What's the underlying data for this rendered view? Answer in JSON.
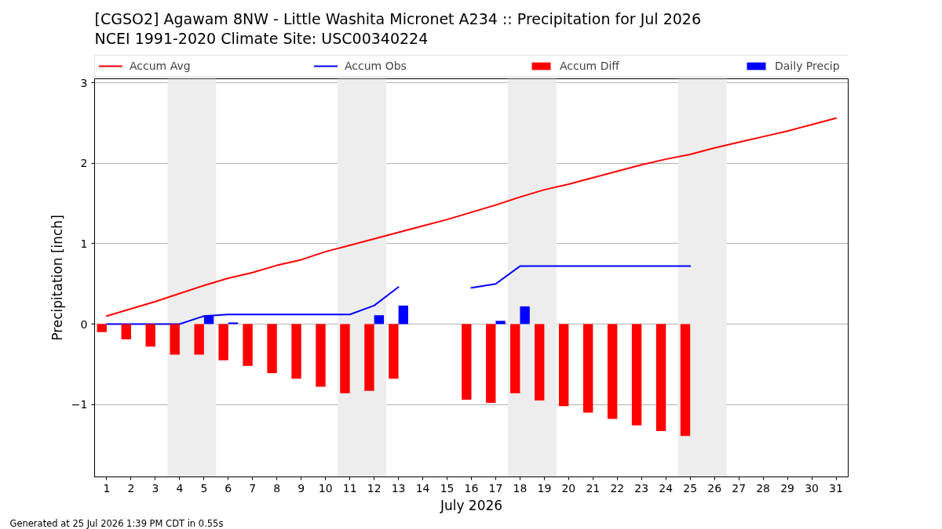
{
  "chart_data": {
    "type": "bar",
    "title": "[CGSO2] Agawam 8NW - Little Washita Micronet A234 :: Precipitation for Jul 2026",
    "subtitle": "NCEI 1991-2020 Climate Site: USC00340224",
    "xlabel": "July 2026",
    "ylabel": "Precipitation [inch]",
    "x": [
      1,
      2,
      3,
      4,
      5,
      6,
      7,
      8,
      9,
      10,
      11,
      12,
      13,
      14,
      15,
      16,
      17,
      18,
      19,
      20,
      21,
      22,
      23,
      24,
      25,
      26,
      27,
      28,
      29,
      30,
      31
    ],
    "xlim": [
      0.5,
      31.5
    ],
    "xticks": [
      1,
      2,
      3,
      4,
      5,
      6,
      7,
      8,
      9,
      10,
      11,
      12,
      13,
      14,
      15,
      16,
      17,
      18,
      19,
      20,
      21,
      22,
      23,
      24,
      25,
      26,
      27,
      28,
      29,
      30,
      31
    ],
    "ylim": [
      -1.9,
      3.05
    ],
    "yticks": [
      {
        "value": -1,
        "label": "−1"
      },
      0,
      1,
      2,
      3
    ],
    "grid": "y",
    "legend": "top",
    "bands": [
      {
        "axis": "x",
        "from": 3.5,
        "to": 5.5,
        "color": "#ededed"
      },
      {
        "axis": "x",
        "from": 10.5,
        "to": 12.5,
        "color": "#ededed"
      },
      {
        "axis": "x",
        "from": 17.5,
        "to": 19.5,
        "color": "#ededed"
      },
      {
        "axis": "x",
        "from": 24.5,
        "to": 26.5,
        "color": "#ededed"
      }
    ],
    "annotations": [
      "Generated at 25 Jul 2026 1:39 PM CDT in 0.55s"
    ],
    "series": [
      {
        "name": "Accum Avg",
        "type": "line",
        "color": "#ff0000",
        "values": [
          0.1,
          0.19,
          0.28,
          0.38,
          0.48,
          0.57,
          0.64,
          0.73,
          0.8,
          0.9,
          0.98,
          1.06,
          1.14,
          1.22,
          1.3,
          1.39,
          1.48,
          1.58,
          1.67,
          1.74,
          1.82,
          1.9,
          1.98,
          2.05,
          2.11,
          2.19,
          2.26,
          2.33,
          2.4,
          2.48,
          2.56
        ]
      },
      {
        "name": "Accum Obs",
        "type": "line",
        "color": "#0000ff",
        "values": [
          0,
          0,
          0,
          0,
          0.1,
          0.12,
          0.12,
          0.12,
          0.12,
          0.12,
          0.12,
          0.23,
          0.46,
          null,
          null,
          0.45,
          0.5,
          0.72,
          0.72,
          0.72,
          0.72,
          0.72,
          0.72,
          0.72,
          0.72,
          null,
          null,
          null,
          null,
          null,
          null
        ]
      },
      {
        "name": "Accum Diff",
        "color": "#ff0000",
        "values": [
          -0.1,
          -0.19,
          -0.28,
          -0.38,
          -0.38,
          -0.45,
          -0.52,
          -0.61,
          -0.68,
          -0.78,
          -0.86,
          -0.83,
          -0.68,
          null,
          null,
          -0.94,
          -0.98,
          -0.86,
          -0.95,
          -1.02,
          -1.1,
          -1.18,
          -1.26,
          -1.33,
          -1.39,
          null,
          null,
          null,
          null,
          null,
          null
        ]
      },
      {
        "name": "Daily Precip",
        "color": "#0000ff",
        "values": [
          0,
          0,
          0,
          0,
          0.1,
          0.02,
          0,
          0,
          0,
          0,
          0,
          0.11,
          0.23,
          null,
          null,
          0,
          0.04,
          0.22,
          0,
          0,
          0,
          0,
          0,
          0,
          0,
          null,
          null,
          null,
          null,
          null,
          null
        ]
      }
    ]
  }
}
